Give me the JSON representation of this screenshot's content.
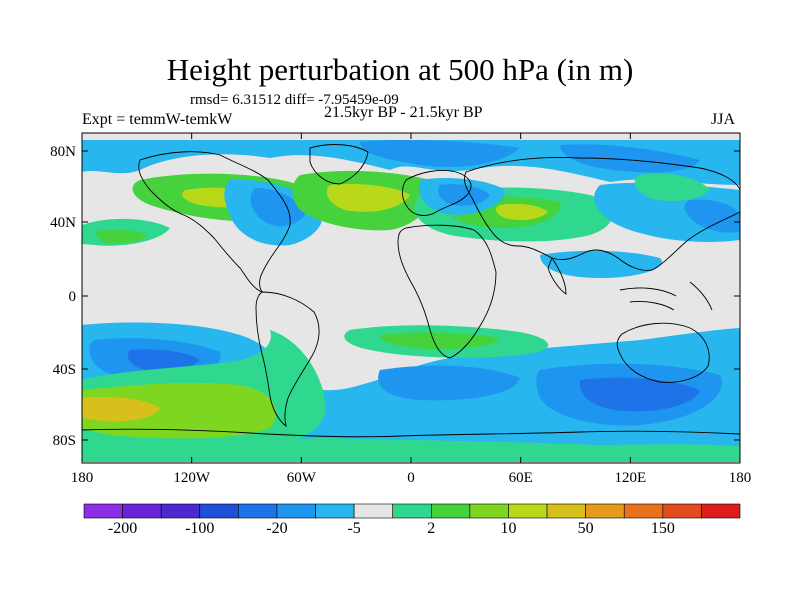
{
  "title": "Height perturbation at 500 hPa (in m)",
  "stats": "rmsd= 6.31512  diff= -7.95459e-09",
  "experiment": "Expt = temmW-temkW",
  "period": "21.5kyr BP - 21.5kyr BP",
  "season": "JJA",
  "axes": {
    "lat_labels": [
      "80N",
      "40N",
      "0",
      "40S",
      "80S"
    ],
    "lon_labels": [
      "180",
      "120W",
      "60W",
      "0",
      "60E",
      "120E",
      "180"
    ]
  },
  "colorbar": {
    "labels": [
      "-200",
      "-100",
      "-20",
      "-5",
      "2",
      "10",
      "50",
      "150"
    ],
    "colors": [
      "#8c2ee6",
      "#6a24d8",
      "#4a2ad0",
      "#1f4ed8",
      "#1e73e8",
      "#1e96f0",
      "#27b6ee",
      "#e6e6e6",
      "#2fd88e",
      "#45d23c",
      "#7ed620",
      "#b9d81a",
      "#d8c01c",
      "#e59a1c",
      "#e8721e",
      "#e34a1e",
      "#dd1e1e"
    ]
  },
  "field_palette": {
    "neutral": "#e6e6e6",
    "neg_light": "#27b6ee",
    "neg_mid": "#1e96f0",
    "neg_strong": "#1e73e8",
    "pos_light": "#2fd88e",
    "pos_mid": "#45d23c",
    "pos_strong": "#7ed620",
    "pos_high": "#b9d81a",
    "pos_peak": "#d8c01c"
  }
}
